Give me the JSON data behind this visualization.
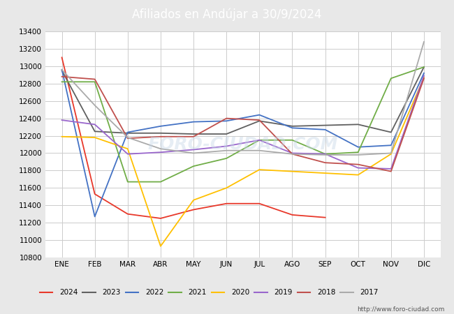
{
  "title": "Afiliados en Andújar a 30/9/2024",
  "title_bg_color": "#4472c4",
  "title_text_color": "#ffffff",
  "months": [
    "ENE",
    "FEB",
    "MAR",
    "ABR",
    "MAY",
    "JUN",
    "JUL",
    "AGO",
    "SEP",
    "OCT",
    "NOV",
    "DIC"
  ],
  "ylim": [
    10800,
    13400
  ],
  "yticks": [
    10800,
    11000,
    11200,
    11400,
    11600,
    11800,
    12000,
    12200,
    12400,
    12600,
    12800,
    13000,
    13200,
    13400
  ],
  "series": {
    "2024": {
      "color": "#e8382a",
      "data": [
        13100,
        11530,
        11300,
        11250,
        11350,
        11420,
        11420,
        11290,
        11260,
        null,
        null,
        null
      ]
    },
    "2023": {
      "color": "#606060",
      "data": [
        12950,
        12250,
        12230,
        12230,
        12220,
        12220,
        12370,
        12310,
        12320,
        12330,
        12240,
        12990
      ]
    },
    "2022": {
      "color": "#4472c4",
      "data": [
        12960,
        11270,
        12240,
        12310,
        12360,
        12370,
        12440,
        12290,
        12270,
        12070,
        12090,
        12920
      ]
    },
    "2021": {
      "color": "#70ad47",
      "data": [
        12820,
        12820,
        11670,
        11670,
        11850,
        11940,
        12150,
        12150,
        11990,
        12010,
        12860,
        12990
      ]
    },
    "2020": {
      "color": "#ffc000",
      "data": [
        12190,
        12180,
        12050,
        10930,
        11460,
        11600,
        11810,
        11790,
        11770,
        11750,
        11990,
        12870
      ]
    },
    "2019": {
      "color": "#9966cc",
      "data": [
        12380,
        12330,
        11990,
        12010,
        12040,
        12080,
        12150,
        12000,
        11990,
        11830,
        11820,
        12890
      ]
    },
    "2018": {
      "color": "#c0504d",
      "data": [
        12880,
        12850,
        12170,
        12190,
        12190,
        12400,
        12380,
        11990,
        11890,
        11870,
        11790,
        12860
      ]
    },
    "2017": {
      "color": "#aaaaaa",
      "data": [
        12960,
        12550,
        12180,
        12050,
        12000,
        12030,
        12030,
        11990,
        11980,
        11980,
        12000,
        13280
      ]
    }
  },
  "watermark": "FORO-CIUDAD.COM",
  "url": "http://www.foro-ciudad.com",
  "fig_bg_color": "#e8e8e8",
  "plot_bg_color": "#ffffff",
  "grid_color": "#cccccc"
}
